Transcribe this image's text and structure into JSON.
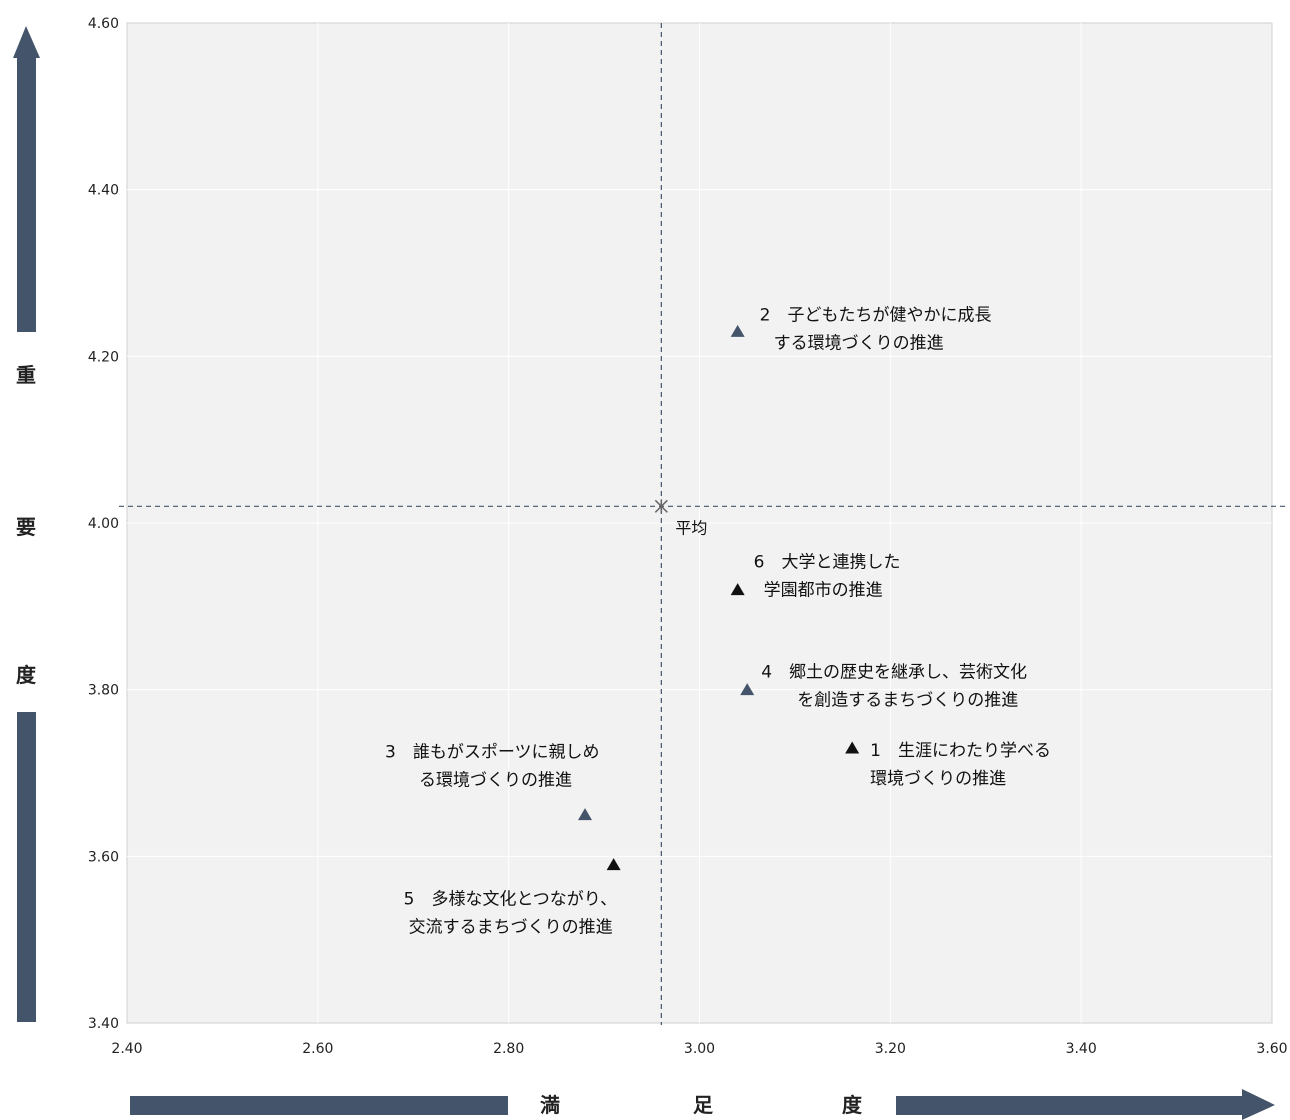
{
  "chart_data": {
    "type": "scatter",
    "xlabel": "満　　足　　度",
    "ylabel": "重　　要　　度",
    "xlabel_chars": [
      "満",
      "足",
      "度"
    ],
    "ylabel_chars": [
      "重",
      "要",
      "度"
    ],
    "xlim": [
      2.4,
      3.6
    ],
    "ylim": [
      3.4,
      4.6
    ],
    "xticks": [
      "2.40",
      "2.60",
      "2.80",
      "3.00",
      "3.20",
      "3.40",
      "3.60"
    ],
    "yticks": [
      "4.60",
      "4.40",
      "4.20",
      "4.00",
      "3.80",
      "3.60",
      "3.40"
    ],
    "grid": true,
    "average": {
      "x": 2.96,
      "y": 4.02,
      "label": "平均"
    },
    "points": [
      {
        "id": "1",
        "x": 3.16,
        "y": 3.73,
        "label_lines": [
          "1　生涯にわたり学べる",
          "環境づくりの推進"
        ],
        "color": "#111111"
      },
      {
        "id": "2",
        "x": 3.04,
        "y": 4.23,
        "label_lines": [
          "2　子どもたちが健やかに成長",
          "する環境づくりの推進"
        ],
        "color": "#44546a"
      },
      {
        "id": "3",
        "x": 2.88,
        "y": 3.65,
        "label_lines": [
          "3　誰もがスポーツに親しめ",
          "る環境づくりの推進"
        ],
        "color": "#44546a"
      },
      {
        "id": "4",
        "x": 3.05,
        "y": 3.8,
        "label_lines": [
          "4　郷土の歴史を継承し、芸術文化",
          "を創造するまちづくりの推進"
        ],
        "color": "#44546a"
      },
      {
        "id": "5",
        "x": 2.91,
        "y": 3.59,
        "label_lines": [
          "5　多様な文化とつながり、",
          "交流するまちづくりの推進"
        ],
        "color": "#111111"
      },
      {
        "id": "6",
        "x": 3.04,
        "y": 3.92,
        "label_lines": [
          "6　大学と連携した",
          "学園都市の推進"
        ],
        "color": "#111111"
      }
    ],
    "colors": {
      "plot_bg": "#f2f2f2",
      "arrow": "#44546a",
      "grid": "#ffffff",
      "avg_line": "#44546a"
    }
  }
}
